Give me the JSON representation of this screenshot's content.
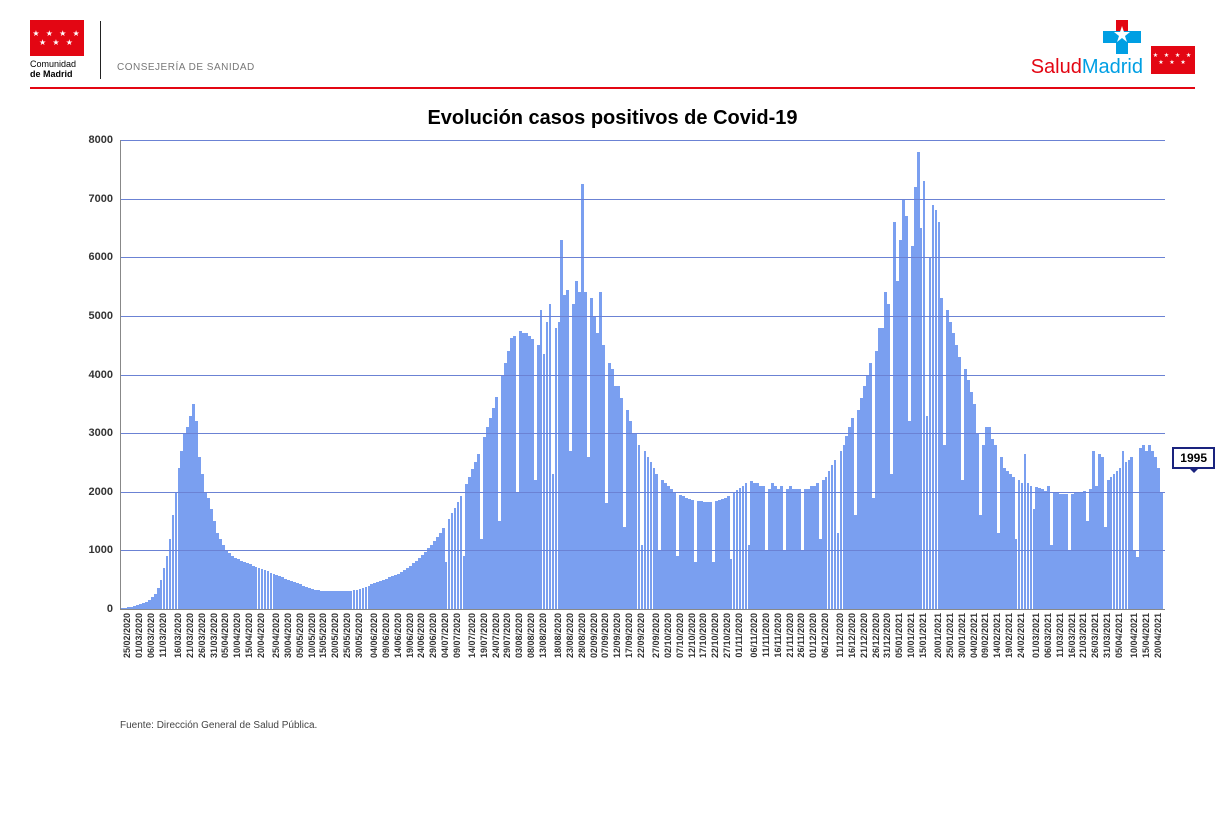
{
  "colors": {
    "accent_red": "#e30613",
    "accent_blue": "#009fe3",
    "bar": "#7a9ff0",
    "grid": "#6b82d4",
    "callout_border": "#1a237e",
    "background": "#ffffff"
  },
  "header": {
    "org_line1": "Comunidad",
    "org_line2": "de Madrid",
    "dept": "CONSEJERÍA DE SANIDAD",
    "brand_part1": "Salud",
    "brand_part2": "Madrid"
  },
  "chart": {
    "type": "bar",
    "title": "Evolución casos positivos de Covid-19",
    "title_fontsize": 20,
    "ylabel": "",
    "ylim": [
      0,
      8000
    ],
    "ytick_step": 1000,
    "yticks": [
      0,
      1000,
      2000,
      3000,
      4000,
      5000,
      6000,
      7000,
      8000
    ],
    "grid_color": "#6b82d4",
    "bar_color": "#7a9ff0",
    "background_color": "#ffffff",
    "label_fontsize": 11,
    "xlabel_fontsize": 9,
    "callout_value": "1995",
    "x_labels": [
      "25/02/2020",
      "01/03/2020",
      "06/03/2020",
      "11/03/2020",
      "16/03/2020",
      "21/03/2020",
      "26/03/2020",
      "31/03/2020",
      "05/04/2020",
      "10/04/2020",
      "15/04/2020",
      "20/04/2020",
      "25/04/2020",
      "30/04/2020",
      "05/05/2020",
      "10/05/2020",
      "15/05/2020",
      "20/05/2020",
      "25/05/2020",
      "30/05/2020",
      "04/06/2020",
      "09/06/2020",
      "14/06/2020",
      "19/06/2020",
      "24/06/2020",
      "29/06/2020",
      "04/07/2020",
      "09/07/2020",
      "14/07/2020",
      "19/07/2020",
      "24/07/2020",
      "29/07/2020",
      "03/08/2020",
      "08/08/2020",
      "13/08/2020",
      "18/08/2020",
      "23/08/2020",
      "28/08/2020",
      "02/09/2020",
      "07/09/2020",
      "12/09/2020",
      "17/09/2020",
      "22/09/2020",
      "27/09/2020",
      "02/10/2020",
      "07/10/2020",
      "12/10/2020",
      "17/10/2020",
      "22/10/2020",
      "27/10/2020",
      "01/11/2020",
      "06/11/2020",
      "11/11/2020",
      "16/11/2020",
      "21/11/2020",
      "26/11/2020",
      "01/12/2020",
      "06/12/2020",
      "11/12/2020",
      "16/12/2020",
      "21/12/2020",
      "26/12/2020",
      "31/12/2020",
      "05/01/2021",
      "10/01/2021",
      "15/01/2021",
      "20/01/2021",
      "25/01/2021",
      "30/01/2021",
      "04/02/2021",
      "09/02/2021",
      "14/02/2021",
      "19/02/2021",
      "24/02/2021",
      "01/03/2021",
      "06/03/2021",
      "11/03/2021",
      "16/03/2021",
      "21/03/2021",
      "26/03/2021",
      "31/03/2021",
      "05/04/2021",
      "10/04/2021",
      "15/04/2021",
      "20/04/2021"
    ],
    "values": [
      10,
      20,
      30,
      40,
      50,
      60,
      80,
      100,
      120,
      150,
      200,
      250,
      350,
      500,
      700,
      900,
      1200,
      1600,
      2000,
      2400,
      2700,
      3000,
      3100,
      3300,
      3500,
      3200,
      2600,
      2300,
      2000,
      1900,
      1700,
      1500,
      1300,
      1200,
      1100,
      1000,
      950,
      900,
      870,
      850,
      820,
      800,
      780,
      760,
      740,
      720,
      700,
      680,
      660,
      640,
      620,
      600,
      580,
      560,
      540,
      520,
      500,
      480,
      460,
      440,
      420,
      400,
      380,
      360,
      340,
      330,
      320,
      310,
      300,
      300,
      300,
      300,
      300,
      300,
      300,
      300,
      300,
      300,
      320,
      330,
      340,
      360,
      380,
      400,
      420,
      440,
      460,
      480,
      500,
      520,
      540,
      560,
      580,
      600,
      630,
      660,
      700,
      740,
      780,
      820,
      870,
      920,
      980,
      1040,
      1100,
      1160,
      1230,
      1300,
      1380,
      800,
      1540,
      1630,
      1720,
      1820,
      1920,
      900,
      2140,
      2260,
      2380,
      2510,
      2650,
      1200,
      2940,
      3100,
      3260,
      3430,
      3610,
      1500,
      3990,
      4190,
      4400,
      4620,
      4650,
      2000,
      4750,
      4700,
      4700,
      4650,
      4600,
      2200,
      4500,
      5100,
      4350,
      4900,
      5200,
      2300,
      4800,
      4900,
      6300,
      5350,
      5450,
      2700,
      5200,
      5600,
      5400,
      7250,
      5400,
      2600,
      5300,
      5000,
      4700,
      5400,
      4500,
      1800,
      4200,
      4100,
      3800,
      3800,
      3600,
      1400,
      3400,
      3200,
      3000,
      3000,
      2800,
      1100,
      2700,
      2600,
      2500,
      2400,
      2300,
      1000,
      2200,
      2150,
      2100,
      2050,
      2000,
      900,
      1950,
      1920,
      1900,
      1880,
      1860,
      800,
      1850,
      1840,
      1830,
      1830,
      1830,
      800,
      1840,
      1860,
      1880,
      1900,
      1930,
      850,
      2000,
      2030,
      2070,
      2100,
      2150,
      1100,
      2190,
      2150,
      2150,
      2100,
      2100,
      1000,
      2050,
      2150,
      2100,
      2050,
      2100,
      1000,
      2050,
      2100,
      2050,
      2050,
      2050,
      1000,
      2050,
      2050,
      2100,
      2100,
      2150,
      1200,
      2200,
      2250,
      2350,
      2450,
      2550,
      1300,
      2700,
      2800,
      2950,
      3100,
      3250,
      1600,
      3400,
      3600,
      3800,
      4000,
      4200,
      1900,
      4400,
      4800,
      4800,
      5400,
      5200,
      2300,
      6600,
      5600,
      6300,
      7000,
      6700,
      3200,
      6200,
      7200,
      7800,
      6500,
      7300,
      3300,
      6000,
      6900,
      6800,
      6600,
      5300,
      2800,
      5100,
      4900,
      4700,
      4500,
      4300,
      2200,
      4100,
      3900,
      3700,
      3500,
      3000,
      1600,
      2800,
      3100,
      3100,
      2900,
      2800,
      1300,
      2600,
      2400,
      2350,
      2300,
      2250,
      1200,
      2200,
      2150,
      2640,
      2150,
      2100,
      1700,
      2080,
      2060,
      2040,
      2020,
      2100,
      1100,
      2000,
      1980,
      1970,
      1960,
      1970,
      1000,
      1970,
      1980,
      1990,
      2000,
      2020,
      1500,
      2050,
      2700,
      2100,
      2640,
      2600,
      1400,
      2200,
      2250,
      2300,
      2350,
      2400,
      2700,
      2500,
      2550,
      2600,
      1000,
      880,
      2750,
      2800,
      2700,
      2800,
      2700,
      2600,
      2400,
      1995
    ]
  },
  "footnote": "Fuente: Dirección General de Salud Pública."
}
